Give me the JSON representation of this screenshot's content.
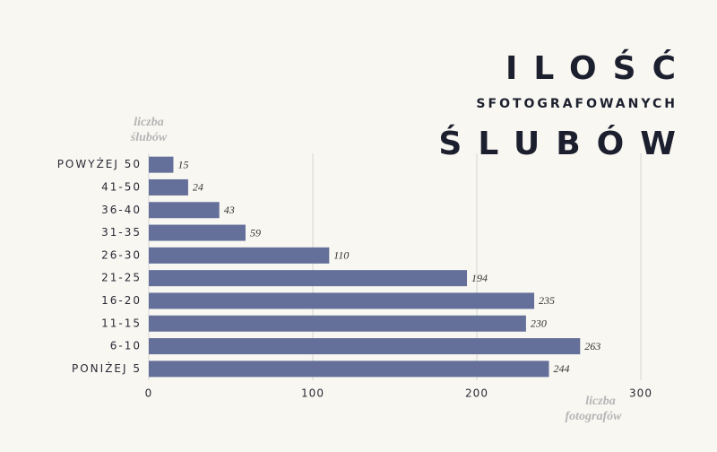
{
  "chart_data": {
    "type": "hbar",
    "title": [
      "ILOŚĆ",
      "SFOTOGRAFOWANYCH",
      "ŚLUBÓW"
    ],
    "y_label": [
      "liczba",
      "ślubów"
    ],
    "x_label": [
      "liczba",
      "fotografów"
    ],
    "categories": [
      "POWYŻEJ 50",
      "41-50",
      "36-40",
      "31-35",
      "26-30",
      "21-25",
      "16-20",
      "11-15",
      "6-10",
      "PONIŻEJ 5"
    ],
    "values": [
      15,
      24,
      43,
      59,
      110,
      194,
      235,
      230,
      263,
      244
    ],
    "color": "#65709a",
    "xlim": [
      0,
      300
    ],
    "xticks": [
      0,
      100,
      200,
      300
    ],
    "grid": true
  }
}
